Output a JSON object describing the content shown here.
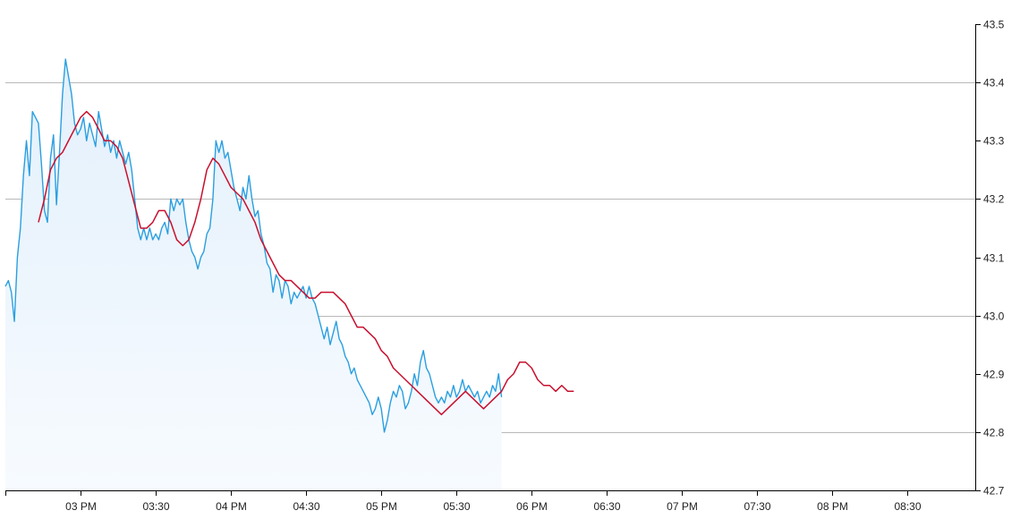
{
  "chart_data": {
    "type": "line",
    "title": "",
    "xlabel": "",
    "ylabel": "",
    "x_range_hours": [
      14.5,
      20.95
    ],
    "ylim": [
      42.7,
      43.5
    ],
    "x_ticks": [
      {
        "label": "03 PM",
        "hour": 15.0
      },
      {
        "label": "03:30",
        "hour": 15.5
      },
      {
        "label": "04 PM",
        "hour": 16.0
      },
      {
        "label": "04:30",
        "hour": 16.5
      },
      {
        "label": "05 PM",
        "hour": 17.0
      },
      {
        "label": "05:30",
        "hour": 17.5
      },
      {
        "label": "06 PM",
        "hour": 18.0
      },
      {
        "label": "06:30",
        "hour": 18.5
      },
      {
        "label": "07 PM",
        "hour": 19.0
      },
      {
        "label": "07:30",
        "hour": 19.5
      },
      {
        "label": "08 PM",
        "hour": 20.0
      },
      {
        "label": "08:30",
        "hour": 20.5
      }
    ],
    "y_ticks": [
      {
        "label": "43.5",
        "value": 43.5
      },
      {
        "label": "43.4",
        "value": 43.4
      },
      {
        "label": "43.3",
        "value": 43.3
      },
      {
        "label": "43.2",
        "value": 43.2
      },
      {
        "label": "43.1",
        "value": 43.1
      },
      {
        "label": "43.0",
        "value": 43.0
      },
      {
        "label": "42.9",
        "value": 42.9
      },
      {
        "label": "42.8",
        "value": 42.8
      },
      {
        "label": "42.7",
        "value": 42.7
      }
    ],
    "gridlines": [
      43.4,
      43.2,
      43.0,
      42.8
    ],
    "colors": {
      "price": "#2a9fe0",
      "average": "#c8102e",
      "area": "#eaf4fc"
    },
    "series": [
      {
        "key": "price",
        "area": true,
        "points": [
          [
            14.5,
            43.05
          ],
          [
            14.52,
            43.06
          ],
          [
            14.54,
            43.04
          ],
          [
            14.56,
            42.99
          ],
          [
            14.58,
            43.1
          ],
          [
            14.6,
            43.15
          ],
          [
            14.62,
            43.24
          ],
          [
            14.64,
            43.3
          ],
          [
            14.66,
            43.24
          ],
          [
            14.68,
            43.35
          ],
          [
            14.7,
            43.34
          ],
          [
            14.72,
            43.33
          ],
          [
            14.74,
            43.26
          ],
          [
            14.76,
            43.18
          ],
          [
            14.78,
            43.16
          ],
          [
            14.8,
            43.27
          ],
          [
            14.82,
            43.31
          ],
          [
            14.84,
            43.19
          ],
          [
            14.86,
            43.28
          ],
          [
            14.88,
            43.38
          ],
          [
            14.9,
            43.44
          ],
          [
            14.92,
            43.41
          ],
          [
            14.94,
            43.38
          ],
          [
            14.96,
            43.33
          ],
          [
            14.98,
            43.31
          ],
          [
            15.0,
            43.32
          ],
          [
            15.02,
            43.34
          ],
          [
            15.04,
            43.3
          ],
          [
            15.06,
            43.33
          ],
          [
            15.08,
            43.31
          ],
          [
            15.1,
            43.29
          ],
          [
            15.12,
            43.35
          ],
          [
            15.14,
            43.32
          ],
          [
            15.16,
            43.29
          ],
          [
            15.18,
            43.31
          ],
          [
            15.2,
            43.28
          ],
          [
            15.22,
            43.3
          ],
          [
            15.24,
            43.27
          ],
          [
            15.26,
            43.3
          ],
          [
            15.28,
            43.28
          ],
          [
            15.3,
            43.26
          ],
          [
            15.32,
            43.28
          ],
          [
            15.34,
            43.25
          ],
          [
            15.36,
            43.2
          ],
          [
            15.38,
            43.15
          ],
          [
            15.4,
            43.13
          ],
          [
            15.42,
            43.15
          ],
          [
            15.44,
            43.13
          ],
          [
            15.46,
            43.15
          ],
          [
            15.48,
            43.13
          ],
          [
            15.5,
            43.14
          ],
          [
            15.52,
            43.13
          ],
          [
            15.54,
            43.15
          ],
          [
            15.56,
            43.16
          ],
          [
            15.58,
            43.14
          ],
          [
            15.6,
            43.2
          ],
          [
            15.62,
            43.18
          ],
          [
            15.64,
            43.2
          ],
          [
            15.66,
            43.19
          ],
          [
            15.68,
            43.2
          ],
          [
            15.7,
            43.16
          ],
          [
            15.72,
            43.13
          ],
          [
            15.74,
            43.11
          ],
          [
            15.76,
            43.1
          ],
          [
            15.78,
            43.08
          ],
          [
            15.8,
            43.1
          ],
          [
            15.82,
            43.11
          ],
          [
            15.84,
            43.14
          ],
          [
            15.86,
            43.15
          ],
          [
            15.88,
            43.2
          ],
          [
            15.9,
            43.3
          ],
          [
            15.92,
            43.28
          ],
          [
            15.94,
            43.3
          ],
          [
            15.96,
            43.27
          ],
          [
            15.98,
            43.28
          ],
          [
            16.0,
            43.25
          ],
          [
            16.02,
            43.22
          ],
          [
            16.04,
            43.2
          ],
          [
            16.06,
            43.18
          ],
          [
            16.08,
            43.22
          ],
          [
            16.1,
            43.2
          ],
          [
            16.12,
            43.24
          ],
          [
            16.14,
            43.2
          ],
          [
            16.16,
            43.17
          ],
          [
            16.18,
            43.18
          ],
          [
            16.2,
            43.14
          ],
          [
            16.22,
            43.12
          ],
          [
            16.24,
            43.09
          ],
          [
            16.26,
            43.08
          ],
          [
            16.28,
            43.04
          ],
          [
            16.3,
            43.07
          ],
          [
            16.32,
            43.06
          ],
          [
            16.34,
            43.03
          ],
          [
            16.36,
            43.06
          ],
          [
            16.38,
            43.05
          ],
          [
            16.4,
            43.02
          ],
          [
            16.42,
            43.04
          ],
          [
            16.44,
            43.03
          ],
          [
            16.46,
            43.04
          ],
          [
            16.48,
            43.05
          ],
          [
            16.5,
            43.03
          ],
          [
            16.52,
            43.05
          ],
          [
            16.54,
            43.03
          ],
          [
            16.56,
            43.02
          ],
          [
            16.58,
            43.0
          ],
          [
            16.6,
            42.98
          ],
          [
            16.62,
            42.96
          ],
          [
            16.64,
            42.98
          ],
          [
            16.66,
            42.95
          ],
          [
            16.68,
            42.97
          ],
          [
            16.7,
            42.99
          ],
          [
            16.72,
            42.96
          ],
          [
            16.74,
            42.95
          ],
          [
            16.76,
            42.93
          ],
          [
            16.78,
            42.92
          ],
          [
            16.8,
            42.9
          ],
          [
            16.82,
            42.91
          ],
          [
            16.84,
            42.89
          ],
          [
            16.86,
            42.88
          ],
          [
            16.88,
            42.87
          ],
          [
            16.9,
            42.86
          ],
          [
            16.92,
            42.85
          ],
          [
            16.94,
            42.83
          ],
          [
            16.96,
            42.84
          ],
          [
            16.98,
            42.86
          ],
          [
            17.0,
            42.84
          ],
          [
            17.02,
            42.8
          ],
          [
            17.04,
            42.82
          ],
          [
            17.06,
            42.85
          ],
          [
            17.08,
            42.87
          ],
          [
            17.1,
            42.86
          ],
          [
            17.12,
            42.88
          ],
          [
            17.14,
            42.87
          ],
          [
            17.16,
            42.84
          ],
          [
            17.18,
            42.85
          ],
          [
            17.2,
            42.87
          ],
          [
            17.22,
            42.9
          ],
          [
            17.24,
            42.88
          ],
          [
            17.26,
            42.92
          ],
          [
            17.28,
            42.94
          ],
          [
            17.3,
            42.91
          ],
          [
            17.32,
            42.9
          ],
          [
            17.34,
            42.88
          ],
          [
            17.36,
            42.86
          ],
          [
            17.38,
            42.85
          ],
          [
            17.4,
            42.86
          ],
          [
            17.42,
            42.85
          ],
          [
            17.44,
            42.87
          ],
          [
            17.46,
            42.86
          ],
          [
            17.48,
            42.88
          ],
          [
            17.5,
            42.86
          ],
          [
            17.52,
            42.87
          ],
          [
            17.54,
            42.89
          ],
          [
            17.56,
            42.87
          ],
          [
            17.58,
            42.88
          ],
          [
            17.6,
            42.87
          ],
          [
            17.62,
            42.86
          ],
          [
            17.64,
            42.87
          ],
          [
            17.66,
            42.85
          ],
          [
            17.68,
            42.86
          ],
          [
            17.7,
            42.87
          ],
          [
            17.72,
            42.86
          ],
          [
            17.74,
            42.88
          ],
          [
            17.76,
            42.87
          ],
          [
            17.78,
            42.9
          ],
          [
            17.8,
            42.86
          ]
        ]
      },
      {
        "key": "average",
        "area": false,
        "points": [
          [
            14.72,
            43.16
          ],
          [
            14.76,
            43.2
          ],
          [
            14.8,
            43.25
          ],
          [
            14.84,
            43.27
          ],
          [
            14.88,
            43.28
          ],
          [
            14.92,
            43.3
          ],
          [
            14.96,
            43.32
          ],
          [
            15.0,
            43.34
          ],
          [
            15.04,
            43.35
          ],
          [
            15.08,
            43.34
          ],
          [
            15.12,
            43.32
          ],
          [
            15.16,
            43.3
          ],
          [
            15.2,
            43.3
          ],
          [
            15.24,
            43.29
          ],
          [
            15.28,
            43.27
          ],
          [
            15.32,
            43.23
          ],
          [
            15.36,
            43.19
          ],
          [
            15.4,
            43.15
          ],
          [
            15.44,
            43.15
          ],
          [
            15.48,
            43.16
          ],
          [
            15.52,
            43.18
          ],
          [
            15.56,
            43.18
          ],
          [
            15.6,
            43.16
          ],
          [
            15.64,
            43.13
          ],
          [
            15.68,
            43.12
          ],
          [
            15.72,
            43.13
          ],
          [
            15.76,
            43.16
          ],
          [
            15.8,
            43.2
          ],
          [
            15.84,
            43.25
          ],
          [
            15.88,
            43.27
          ],
          [
            15.92,
            43.26
          ],
          [
            15.96,
            43.24
          ],
          [
            16.0,
            43.22
          ],
          [
            16.04,
            43.21
          ],
          [
            16.08,
            43.2
          ],
          [
            16.12,
            43.18
          ],
          [
            16.16,
            43.16
          ],
          [
            16.2,
            43.13
          ],
          [
            16.24,
            43.11
          ],
          [
            16.28,
            43.09
          ],
          [
            16.32,
            43.07
          ],
          [
            16.36,
            43.06
          ],
          [
            16.4,
            43.06
          ],
          [
            16.44,
            43.05
          ],
          [
            16.48,
            43.04
          ],
          [
            16.52,
            43.03
          ],
          [
            16.56,
            43.03
          ],
          [
            16.6,
            43.04
          ],
          [
            16.64,
            43.04
          ],
          [
            16.68,
            43.04
          ],
          [
            16.72,
            43.03
          ],
          [
            16.76,
            43.02
          ],
          [
            16.8,
            43.0
          ],
          [
            16.84,
            42.98
          ],
          [
            16.88,
            42.98
          ],
          [
            16.92,
            42.97
          ],
          [
            16.96,
            42.96
          ],
          [
            17.0,
            42.94
          ],
          [
            17.04,
            42.93
          ],
          [
            17.08,
            42.91
          ],
          [
            17.12,
            42.9
          ],
          [
            17.16,
            42.89
          ],
          [
            17.2,
            42.88
          ],
          [
            17.24,
            42.87
          ],
          [
            17.28,
            42.86
          ],
          [
            17.32,
            42.85
          ],
          [
            17.36,
            42.84
          ],
          [
            17.4,
            42.83
          ],
          [
            17.44,
            42.84
          ],
          [
            17.48,
            42.85
          ],
          [
            17.52,
            42.86
          ],
          [
            17.56,
            42.87
          ],
          [
            17.6,
            42.86
          ],
          [
            17.64,
            42.85
          ],
          [
            17.68,
            42.84
          ],
          [
            17.72,
            42.85
          ],
          [
            17.76,
            42.86
          ],
          [
            17.8,
            42.87
          ],
          [
            17.84,
            42.89
          ],
          [
            17.88,
            42.9
          ],
          [
            17.92,
            42.92
          ],
          [
            17.96,
            42.92
          ],
          [
            18.0,
            42.91
          ],
          [
            18.04,
            42.89
          ],
          [
            18.08,
            42.88
          ],
          [
            18.12,
            42.88
          ],
          [
            18.16,
            42.87
          ],
          [
            18.2,
            42.88
          ],
          [
            18.24,
            42.87
          ],
          [
            18.28,
            42.87
          ]
        ]
      }
    ]
  }
}
